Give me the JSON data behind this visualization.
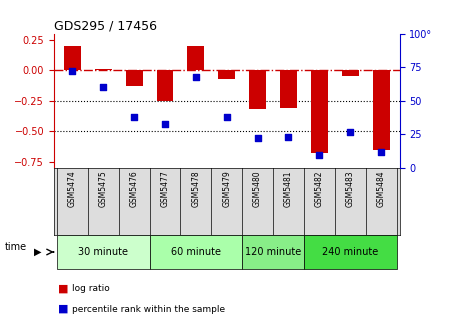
{
  "title": "GDS295 / 17456",
  "samples": [
    "GSM5474",
    "GSM5475",
    "GSM5476",
    "GSM5477",
    "GSM5478",
    "GSM5479",
    "GSM5480",
    "GSM5481",
    "GSM5482",
    "GSM5483",
    "GSM5484"
  ],
  "log_ratio": [
    0.2,
    0.01,
    -0.13,
    -0.25,
    0.2,
    -0.07,
    -0.32,
    -0.31,
    -0.68,
    -0.05,
    -0.65
  ],
  "percentile": [
    72,
    60,
    38,
    33,
    68,
    38,
    22,
    23,
    10,
    27,
    12
  ],
  "groups": [
    {
      "label": "30 minute",
      "start": 0,
      "end": 3,
      "color": "#ccffcc"
    },
    {
      "label": "60 minute",
      "start": 3,
      "end": 6,
      "color": "#aaffaa"
    },
    {
      "label": "120 minute",
      "start": 6,
      "end": 8,
      "color": "#88ee88"
    },
    {
      "label": "240 minute",
      "start": 8,
      "end": 11,
      "color": "#44dd44"
    }
  ],
  "bar_color": "#cc0000",
  "dot_color": "#0000cc",
  "hline_color": "#cc0000",
  "ylim_left": [
    -0.8,
    0.3
  ],
  "ylim_right": [
    0,
    100
  ],
  "yticks_left": [
    0.25,
    0.0,
    -0.25,
    -0.5,
    -0.75
  ],
  "yticks_right": [
    0,
    25,
    50,
    75,
    100
  ],
  "time_label": "time"
}
